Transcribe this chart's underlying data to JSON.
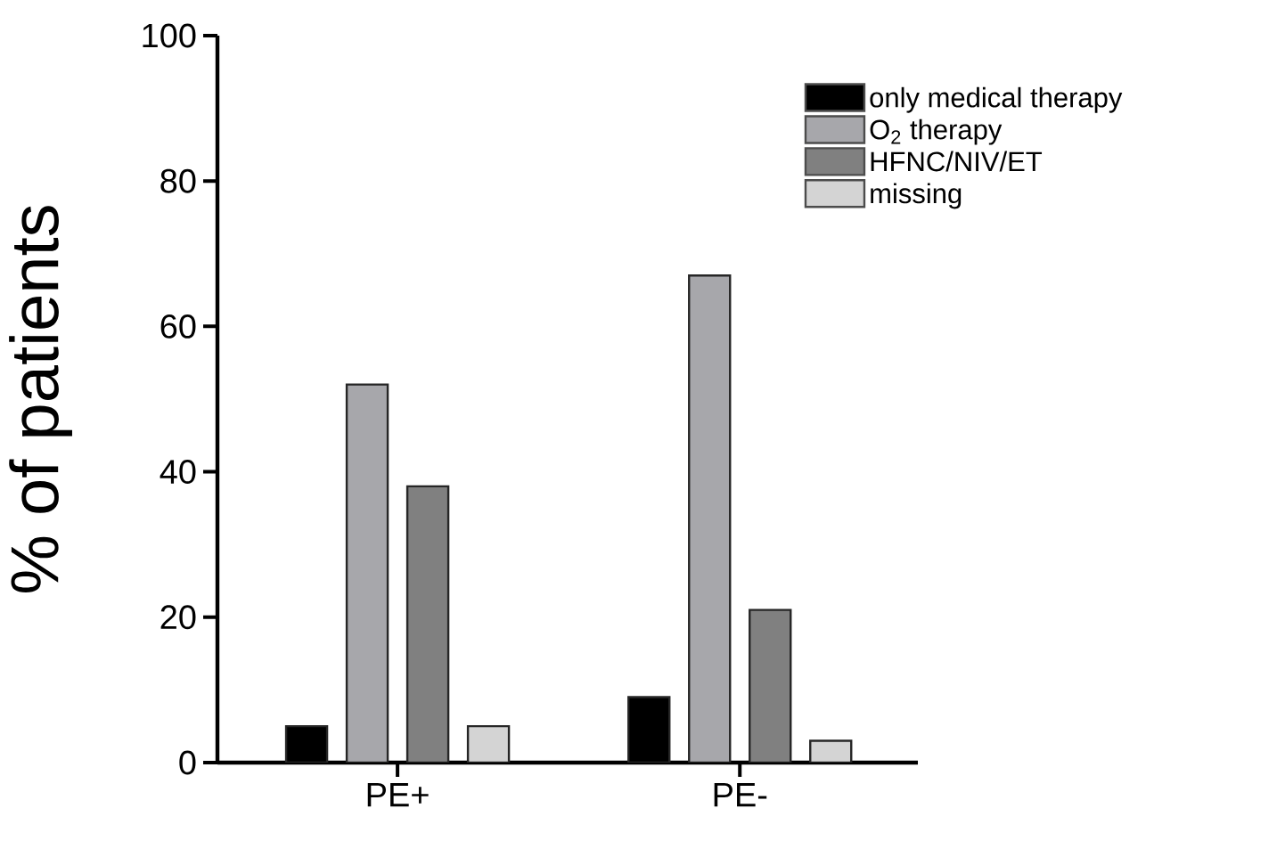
{
  "chart_data": {
    "type": "bar",
    "ylabel": "% of patients",
    "categories": [
      "PE+",
      "PE-"
    ],
    "series": [
      {
        "name": "only medical therapy",
        "color": "#000000",
        "values": [
          5,
          9
        ]
      },
      {
        "name": "O$_{2}$ therapy",
        "color": "#a7a7ab",
        "values": [
          52,
          67
        ]
      },
      {
        "name": "HFNC/NIV/ET",
        "color": "#808080",
        "values": [
          38,
          21
        ]
      },
      {
        "name": "missing",
        "color": "#d4d4d4",
        "values": [
          5,
          3
        ]
      }
    ],
    "ylim": [
      0,
      100
    ],
    "yticks": [
      0,
      20,
      40,
      60,
      80,
      100
    ],
    "legend": "top right"
  }
}
